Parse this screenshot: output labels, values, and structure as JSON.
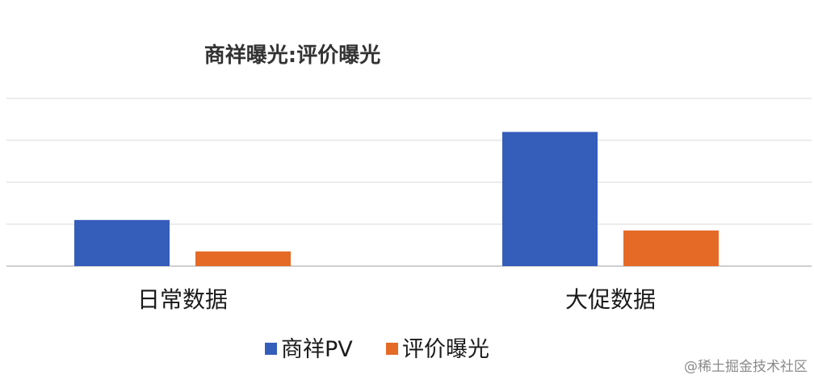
{
  "chart_data": {
    "type": "bar",
    "title": "商祥曝光:评价曝光",
    "categories": [
      "日常数据",
      "大促数据"
    ],
    "series": [
      {
        "name": "商祥PV",
        "color": "#355DBA",
        "values": [
          1.1,
          3.2
        ]
      },
      {
        "name": "评价曝光",
        "color": "#E46A26",
        "values": [
          0.35,
          0.85
        ]
      }
    ],
    "ylim": [
      0,
      4
    ],
    "grid": true,
    "legend": "bottom"
  },
  "watermark": "@稀土掘金技术社区"
}
